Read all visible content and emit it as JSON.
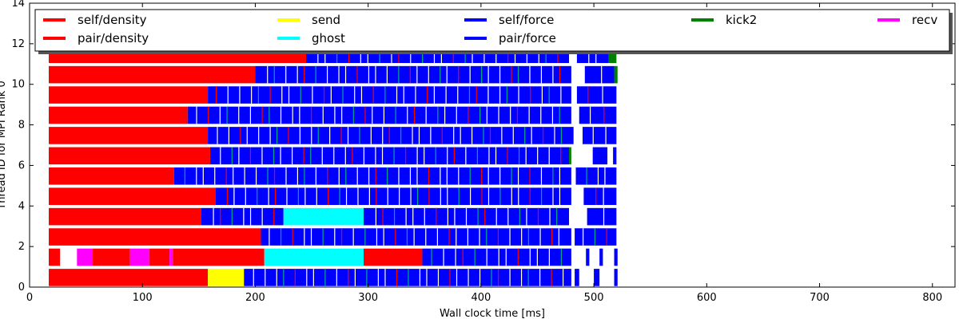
{
  "chart_data": {
    "type": "bar",
    "subtype": "task-timeline",
    "title": "",
    "xlabel": "Wall clock time [ms]",
    "ylabel": "Thread ID for MPI Rank 0",
    "xlim": [
      0,
      820
    ],
    "ylim": [
      0,
      14
    ],
    "xticks": [
      0,
      100,
      200,
      300,
      400,
      500,
      600,
      700,
      800
    ],
    "yticks": [
      0,
      2,
      4,
      6,
      8,
      10,
      12,
      14
    ],
    "grid": false,
    "legend_position": "top",
    "series": [
      {
        "name": "self/density",
        "color": "#ff0000"
      },
      {
        "name": "pair/density",
        "color": "#ff0000"
      },
      {
        "name": "send",
        "color": "#ffff00"
      },
      {
        "name": "ghost",
        "color": "#00ffff"
      },
      {
        "name": "self/force",
        "color": "#0000ff"
      },
      {
        "name": "pair/force",
        "color": "#0000ff"
      },
      {
        "name": "kick2",
        "color": "#008000"
      },
      {
        "name": "recv",
        "color": "#ff00ff"
      }
    ],
    "threads": [
      {
        "id": 0,
        "segments": [
          {
            "task": "density",
            "start": 17,
            "end": 158
          },
          {
            "task": "send",
            "start": 158,
            "end": 190
          },
          {
            "task": "force",
            "start": 190,
            "end": 480
          },
          {
            "task": "force",
            "start": 483,
            "end": 487
          },
          {
            "task": "force",
            "start": 500,
            "end": 505
          },
          {
            "task": "force",
            "start": 518,
            "end": 521
          }
        ]
      },
      {
        "id": 1,
        "segments": [
          {
            "task": "density",
            "start": 17,
            "end": 27
          },
          {
            "task": "recv",
            "start": 42,
            "end": 56
          },
          {
            "task": "density",
            "start": 56,
            "end": 89
          },
          {
            "task": "recv",
            "start": 89,
            "end": 106
          },
          {
            "task": "density",
            "start": 106,
            "end": 124
          },
          {
            "task": "recv",
            "start": 124,
            "end": 127
          },
          {
            "task": "density",
            "start": 127,
            "end": 208
          },
          {
            "task": "ghost",
            "start": 208,
            "end": 296
          },
          {
            "task": "density",
            "start": 296,
            "end": 348
          },
          {
            "task": "force",
            "start": 348,
            "end": 480
          },
          {
            "task": "force",
            "start": 493,
            "end": 496
          },
          {
            "task": "force",
            "start": 505,
            "end": 508
          },
          {
            "task": "force",
            "start": 518,
            "end": 521
          }
        ]
      },
      {
        "id": 2,
        "segments": [
          {
            "task": "density",
            "start": 17,
            "end": 205
          },
          {
            "task": "force",
            "start": 205,
            "end": 480
          },
          {
            "task": "force",
            "start": 483,
            "end": 520
          }
        ]
      },
      {
        "id": 3,
        "segments": [
          {
            "task": "density",
            "start": 17,
            "end": 152
          },
          {
            "task": "force",
            "start": 152,
            "end": 225
          },
          {
            "task": "ghost",
            "start": 225,
            "end": 296
          },
          {
            "task": "force",
            "start": 296,
            "end": 478
          },
          {
            "task": "force",
            "start": 494,
            "end": 520
          }
        ]
      },
      {
        "id": 4,
        "segments": [
          {
            "task": "density",
            "start": 17,
            "end": 165
          },
          {
            "task": "force",
            "start": 165,
            "end": 480
          },
          {
            "task": "force",
            "start": 491,
            "end": 520
          }
        ]
      },
      {
        "id": 5,
        "segments": [
          {
            "task": "density",
            "start": 17,
            "end": 128
          },
          {
            "task": "force",
            "start": 128,
            "end": 480
          },
          {
            "task": "force",
            "start": 484,
            "end": 520
          }
        ]
      },
      {
        "id": 6,
        "segments": [
          {
            "task": "density",
            "start": 17,
            "end": 160
          },
          {
            "task": "force",
            "start": 160,
            "end": 478
          },
          {
            "task": "kick2",
            "start": 478,
            "end": 480
          },
          {
            "task": "force",
            "start": 499,
            "end": 512
          },
          {
            "task": "force",
            "start": 517,
            "end": 520
          }
        ]
      },
      {
        "id": 7,
        "segments": [
          {
            "task": "density",
            "start": 17,
            "end": 158
          },
          {
            "task": "force",
            "start": 158,
            "end": 482
          },
          {
            "task": "force",
            "start": 490,
            "end": 520
          }
        ]
      },
      {
        "id": 8,
        "segments": [
          {
            "task": "density",
            "start": 17,
            "end": 140
          },
          {
            "task": "force",
            "start": 140,
            "end": 480
          },
          {
            "task": "force",
            "start": 487,
            "end": 520
          }
        ]
      },
      {
        "id": 9,
        "segments": [
          {
            "task": "density",
            "start": 17,
            "end": 158
          },
          {
            "task": "force",
            "start": 158,
            "end": 480
          },
          {
            "task": "force",
            "start": 485,
            "end": 520
          }
        ]
      },
      {
        "id": 10,
        "segments": [
          {
            "task": "density",
            "start": 17,
            "end": 200
          },
          {
            "task": "force",
            "start": 200,
            "end": 480
          },
          {
            "task": "force",
            "start": 492,
            "end": 518
          },
          {
            "task": "kick2",
            "start": 518,
            "end": 521
          }
        ]
      },
      {
        "id": 11,
        "segments": [
          {
            "task": "density",
            "start": 17,
            "end": 245
          },
          {
            "task": "force",
            "start": 245,
            "end": 478
          },
          {
            "task": "force",
            "start": 485,
            "end": 513
          },
          {
            "task": "kick2",
            "start": 513,
            "end": 520
          }
        ]
      }
    ]
  }
}
